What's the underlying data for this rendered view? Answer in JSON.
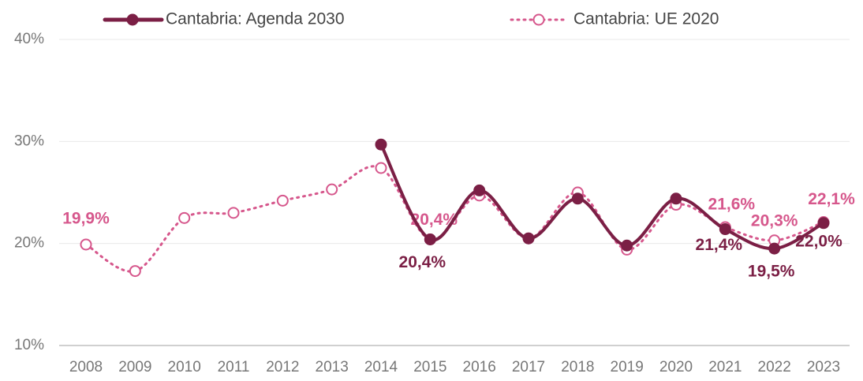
{
  "chart_data": {
    "type": "line",
    "categories": [
      "2008",
      "2009",
      "2010",
      "2011",
      "2012",
      "2013",
      "2014",
      "2015",
      "2016",
      "2017",
      "2018",
      "2019",
      "2020",
      "2021",
      "2022",
      "2023"
    ],
    "series": [
      {
        "name": "Cantabria: Agenda 2030",
        "color": "#7b1f45",
        "style": "solid",
        "values": [
          null,
          null,
          null,
          null,
          null,
          null,
          29.7,
          20.4,
          25.2,
          20.5,
          24.4,
          19.8,
          24.4,
          21.4,
          19.5,
          22.0
        ],
        "value_labels": [
          null,
          null,
          null,
          null,
          null,
          null,
          null,
          "20,4%",
          null,
          null,
          null,
          null,
          null,
          "21,4%",
          "19,5%",
          "22,0%"
        ]
      },
      {
        "name": "Cantabria: UE 2020",
        "color": "#d6578c",
        "style": "dotted",
        "values": [
          19.9,
          17.3,
          22.5,
          23.0,
          24.2,
          25.3,
          27.4,
          20.4,
          24.7,
          20.5,
          25.0,
          19.4,
          23.8,
          21.6,
          20.3,
          22.1
        ],
        "value_labels": [
          "19,9%",
          null,
          null,
          null,
          null,
          null,
          null,
          "20,4%",
          null,
          null,
          null,
          null,
          null,
          "21,6%",
          "20,3%",
          "22,1%"
        ]
      }
    ],
    "ylim": [
      10,
      40
    ],
    "yticks": [
      {
        "value": 10,
        "label": "10%"
      },
      {
        "value": 20,
        "label": "20%"
      },
      {
        "value": 30,
        "label": "30%"
      },
      {
        "value": 40,
        "label": "40%"
      }
    ],
    "grid": true,
    "legend": "top"
  }
}
